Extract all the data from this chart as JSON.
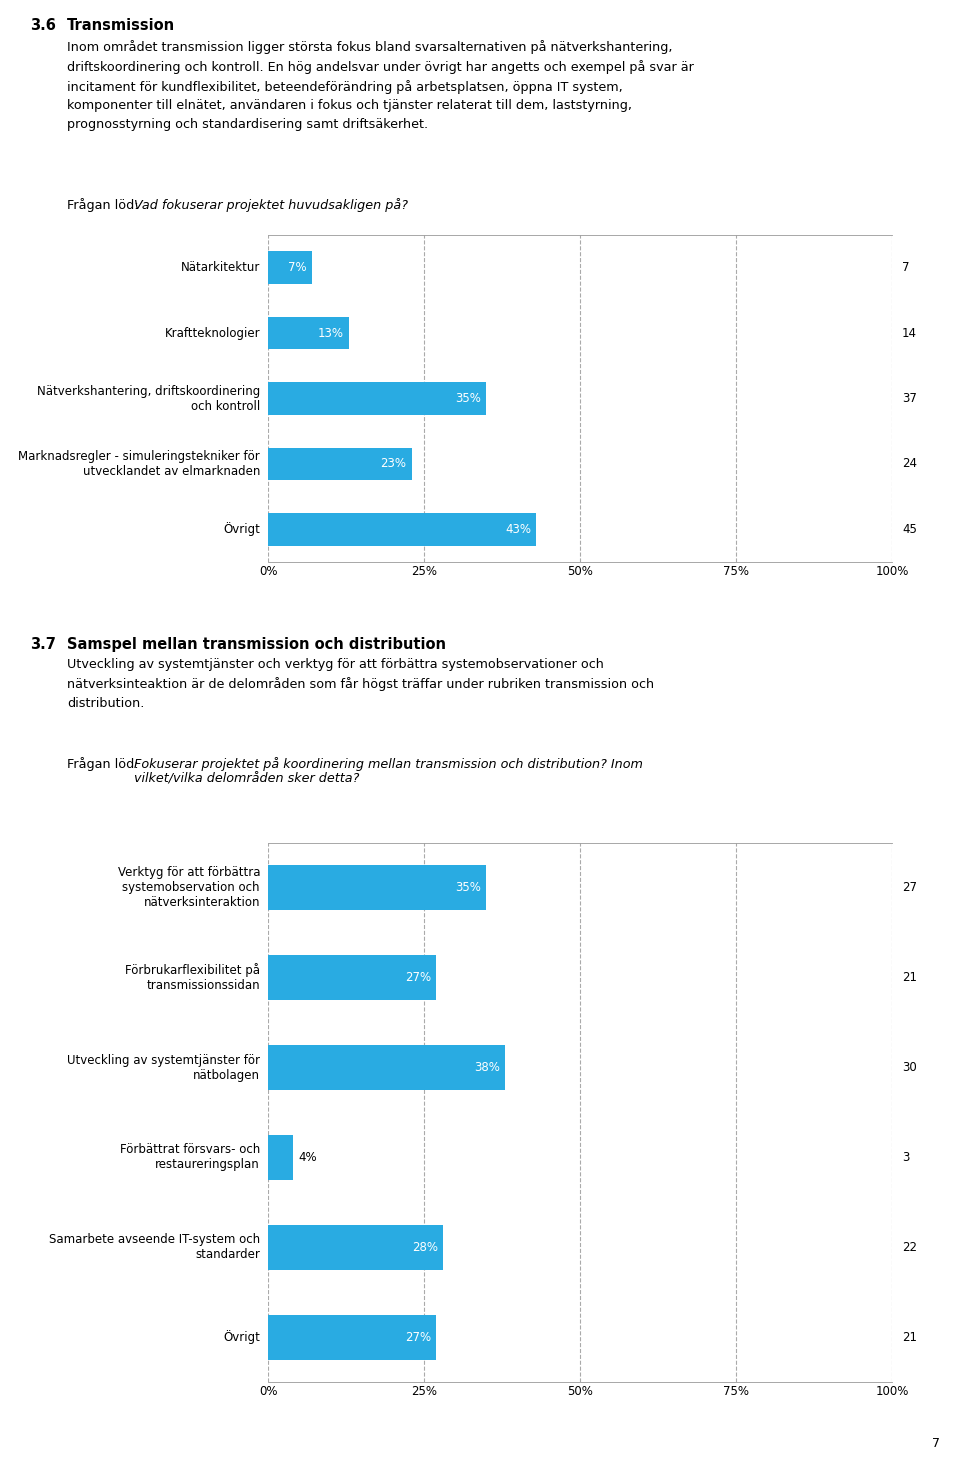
{
  "section1_number": "3.6",
  "section1_title": "Transmission",
  "section1_body": "Inom området transmission ligger största fokus bland svarsalternativen på nätverkshantering,\ndriftskoordinering och kontroll. En hög andelsvar under övrigt har angetts och exempel på svar är\nincitament för kundflexibilitet, beteendeförändring på arbetsplatsen, öppna IT system,\nkomponenter till elnätet, användaren i fokus och tjänster relaterat till dem, laststyrning,\nprognosstyrning och standardisering samt driftsäkerhet.",
  "section1_fragan_prefix": "Frågan löd: ",
  "section1_fragan_italic": "Vad fokuserar projektet huvudsakligen på?",
  "chart1_categories": [
    "Nätarkitektur",
    "Kraftteknologier",
    "Nätverkshantering, driftskoordinering\noch kontroll",
    "Marknadsregler - simuleringstekniker för\nutvecklandet av elmarknaden",
    "Övrigt"
  ],
  "chart1_values": [
    7,
    13,
    35,
    23,
    43
  ],
  "chart1_counts": [
    7,
    14,
    37,
    24,
    45
  ],
  "chart1_xticks": [
    0,
    25,
    50,
    75,
    100
  ],
  "chart1_xtick_labels": [
    "0%",
    "25%",
    "50%",
    "75%",
    "100%"
  ],
  "section2_number": "3.7",
  "section2_title": "Samspel mellan transmission och distribution",
  "section2_body": "Utveckling av systemtjänster och verktyg för att förbättra systemobservationer och\nnätverksinteaktion är de delområden som får högst träffar under rubriken transmission och\ndistribution.",
  "section2_fragan_prefix": "Frågan löd: ",
  "section2_fragan_italic": "Fokuserar projektet på koordinering mellan transmission och distribution? Inom\nvilket/vilka delområden sker detta?",
  "chart2_categories": [
    "Verktyg för att förbättra\nsystemobservation och\nnätverksinteraktion",
    "Förbrukarflexibilitet på\ntransmissionssidan",
    "Utveckling av systemtjänster för\nnätbolagen",
    "Förbättrat försvars- och\nrestaureringsplan",
    "Samarbete avseende IT-system och\nstandarder",
    "Övrigt"
  ],
  "chart2_values": [
    35,
    27,
    38,
    4,
    28,
    27
  ],
  "chart2_counts": [
    27,
    21,
    30,
    3,
    22,
    21
  ],
  "chart2_xticks": [
    0,
    25,
    50,
    75,
    100
  ],
  "chart2_xtick_labels": [
    "0%",
    "25%",
    "50%",
    "75%",
    "100%"
  ],
  "bar_color": "#29ABE2",
  "bar_height": 0.5,
  "background_color": "#ffffff",
  "grid_color": "#AAAAAA",
  "page_number": "7",
  "font_size_body": 9.2,
  "font_size_label": 8.5,
  "font_size_tick": 8.5,
  "font_size_section_number": 10.5,
  "font_size_section_title": 10.5
}
